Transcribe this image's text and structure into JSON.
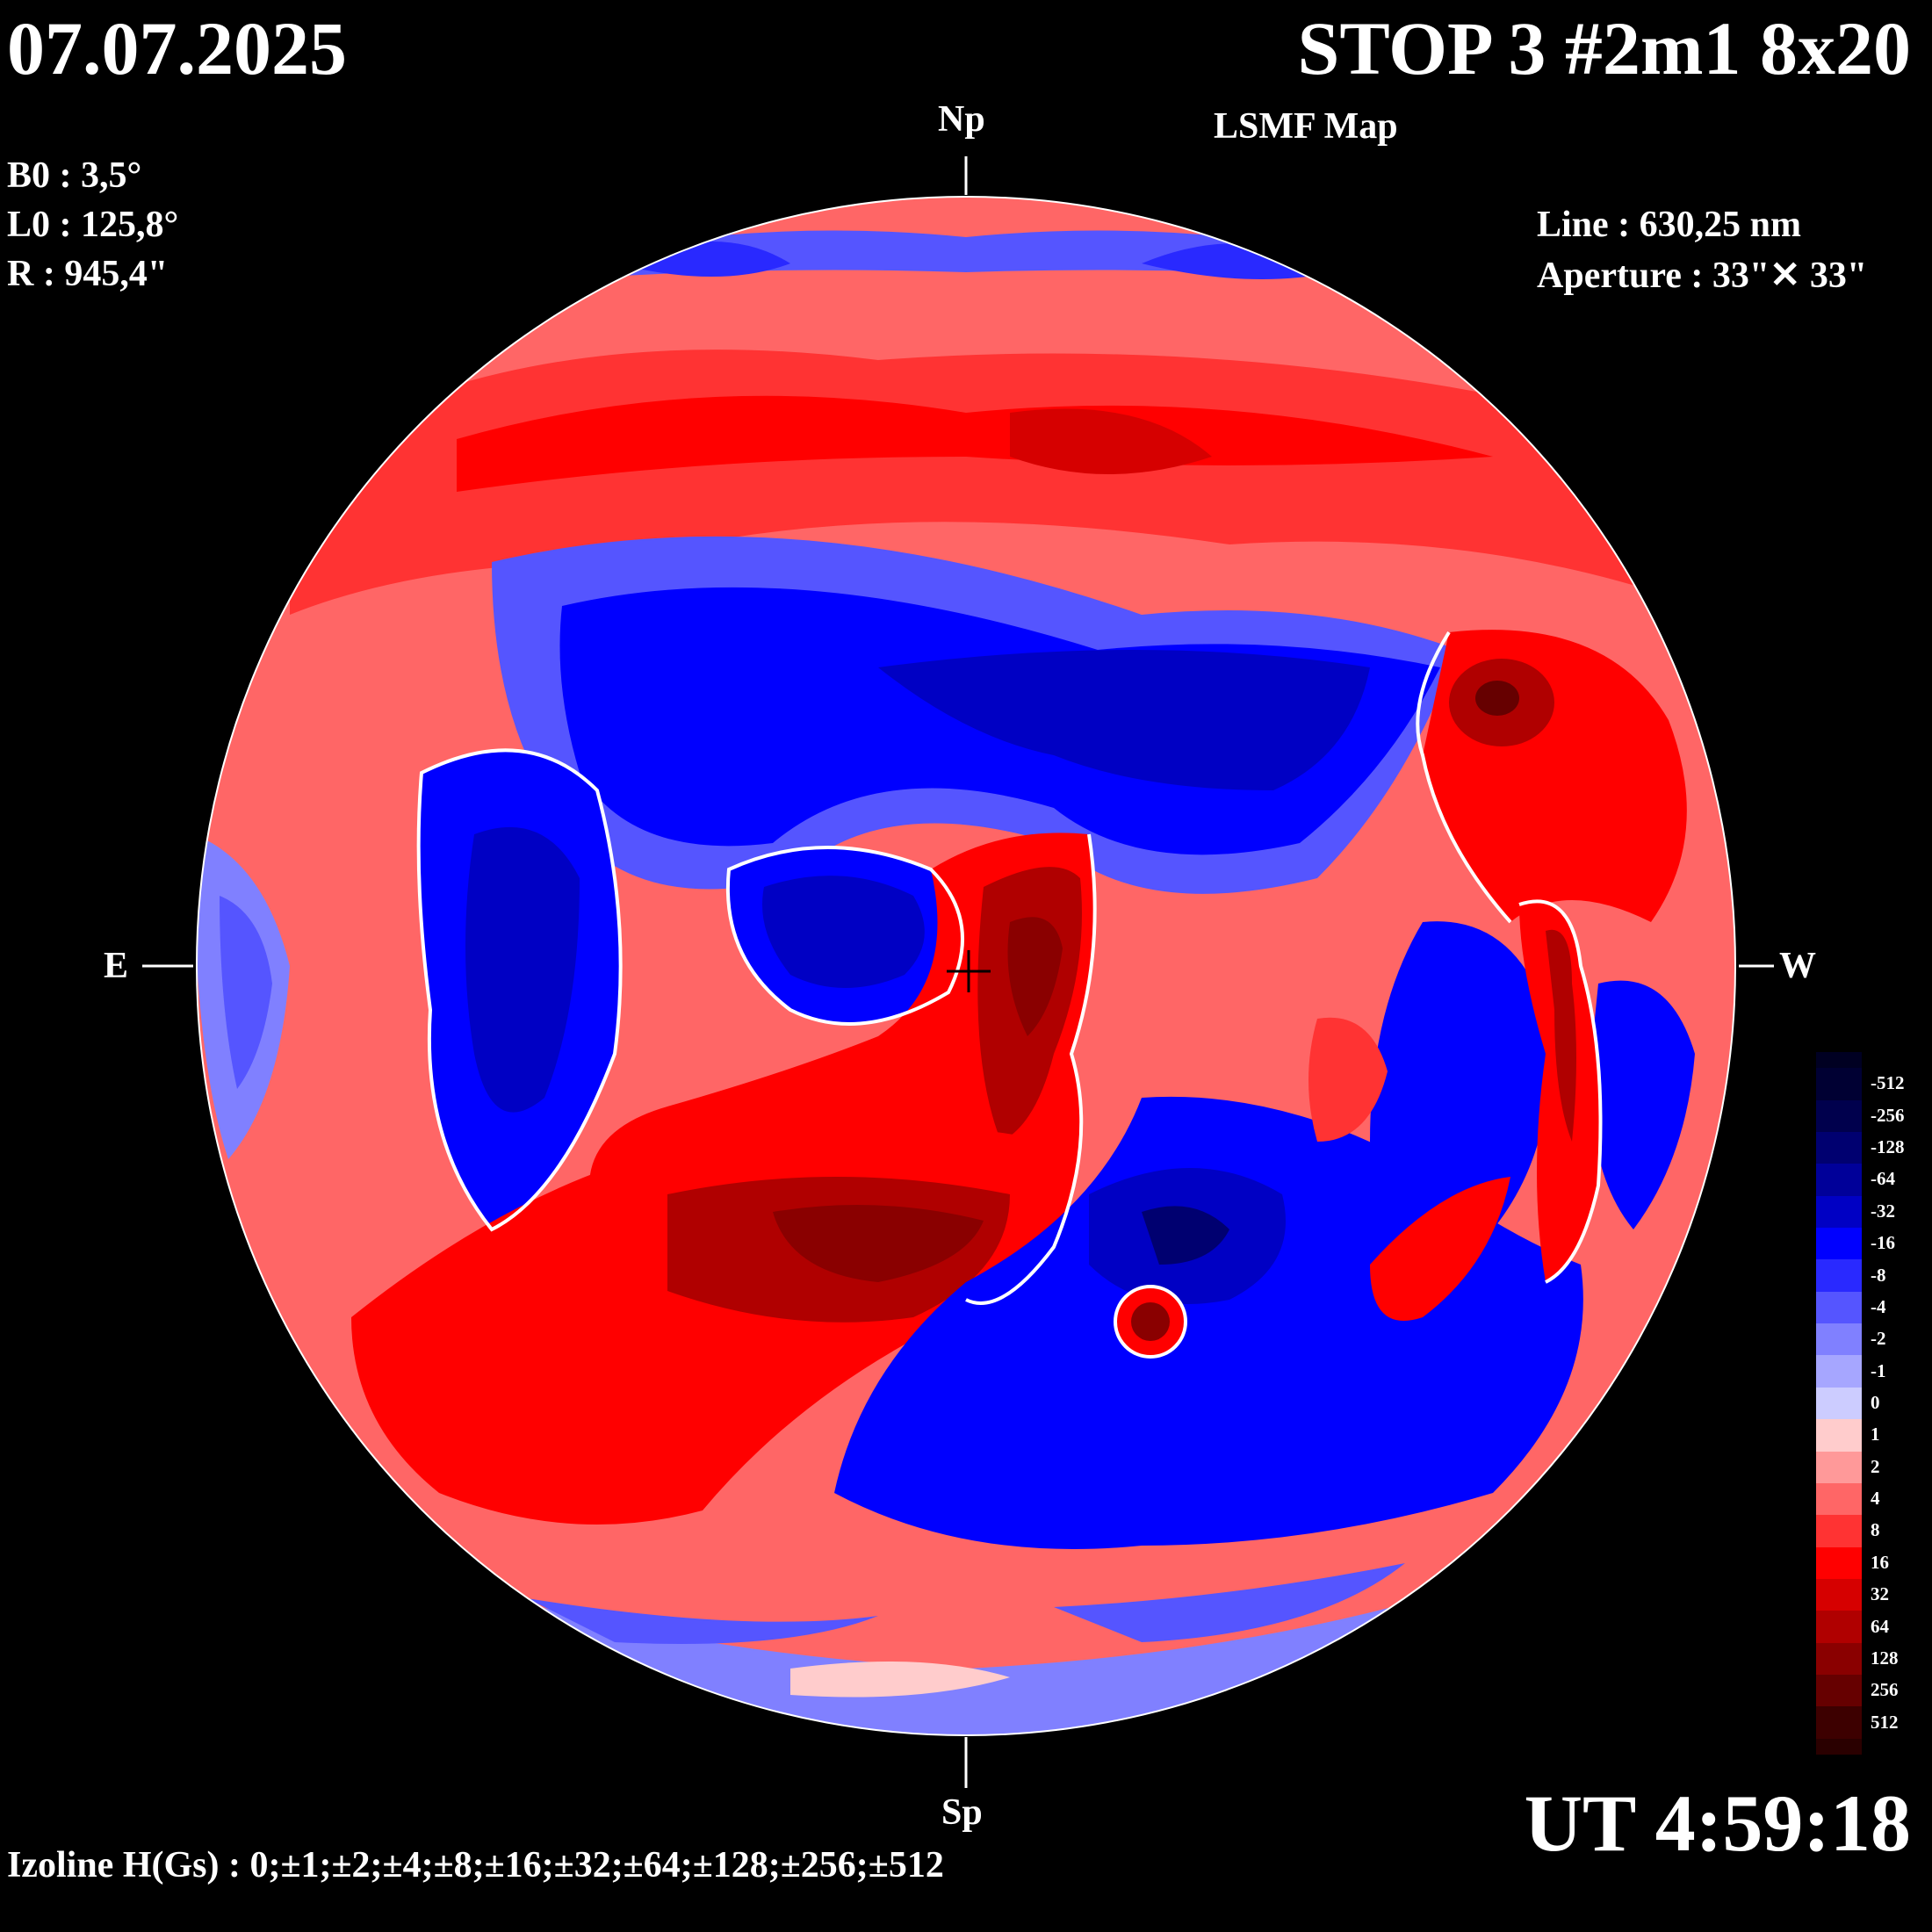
{
  "header": {
    "date": "07.07.2025",
    "title": "STOP 3 #2m1 8x20",
    "subtitle": "LSMF  Map"
  },
  "params": {
    "b0": "B0 : 3,5°",
    "l0": "L0 : 125,8°",
    "radius": "R  : 945,4\""
  },
  "instrument": {
    "line": "Line :  630,25 nm",
    "aperture": "Aperture : 33\"✕ 33\""
  },
  "time": "UT 4:59:18",
  "izoline": "Izoline H(Gs) : 0;±1;±2;±4;±8;±16;±32;±64;±128;±256;±512",
  "directions": {
    "north": "Np",
    "south": "Sp",
    "east": "E",
    "west": "W"
  },
  "colorbar": {
    "levels": [
      {
        "label": "-512",
        "color": "#000033"
      },
      {
        "label": "-256",
        "color": "#00004d"
      },
      {
        "label": "-128",
        "color": "#000070"
      },
      {
        "label": "-64",
        "color": "#000099"
      },
      {
        "label": "-32",
        "color": "#0000c4"
      },
      {
        "label": "-16",
        "color": "#0000ff"
      },
      {
        "label": "-8",
        "color": "#2929ff"
      },
      {
        "label": "-4",
        "color": "#5555ff"
      },
      {
        "label": "-2",
        "color": "#8080ff"
      },
      {
        "label": "-1",
        "color": "#a6a6ff"
      },
      {
        "label": "0",
        "color": "#ccccff"
      },
      {
        "label": "1",
        "color": "#ffcccc"
      },
      {
        "label": "2",
        "color": "#ff9999"
      },
      {
        "label": "4",
        "color": "#ff6666"
      },
      {
        "label": "8",
        "color": "#ff3333"
      },
      {
        "label": "16",
        "color": "#ff0000"
      },
      {
        "label": "32",
        "color": "#d60000"
      },
      {
        "label": "64",
        "color": "#b00000"
      },
      {
        "label": "128",
        "color": "#8a0000"
      },
      {
        "label": "256",
        "color": "#660000"
      },
      {
        "label": "512",
        "color": "#3d0000"
      }
    ],
    "top_color": "#000022",
    "bottom_color": "#2a0000"
  }
}
